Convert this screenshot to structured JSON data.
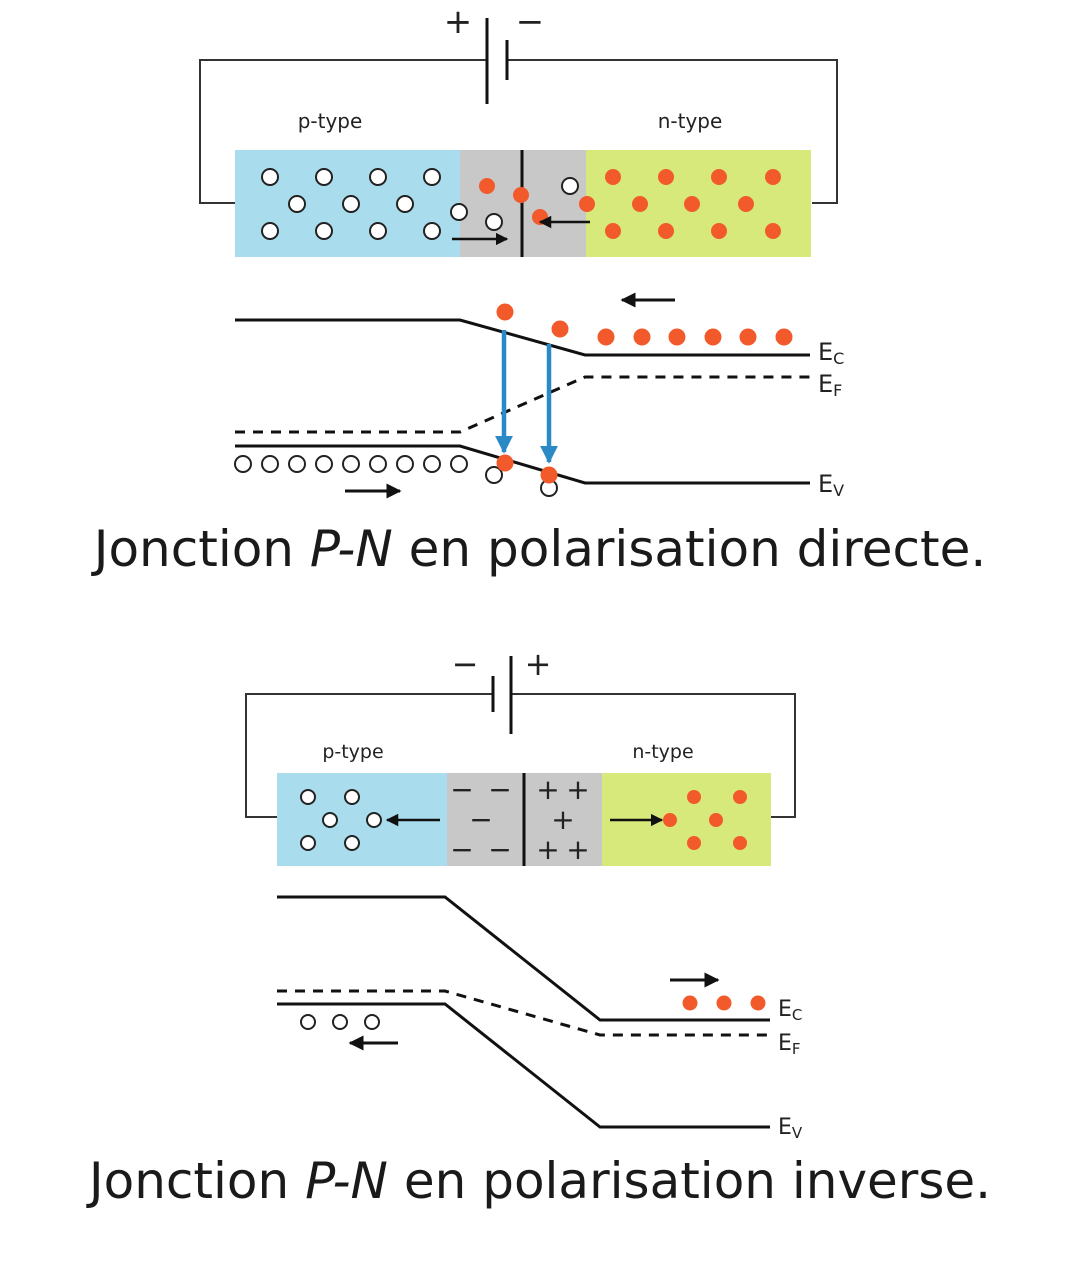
{
  "colors": {
    "p_region": "#a9dcec",
    "depletion": "#c8c8c8",
    "n_region": "#d6e97a",
    "electron": "#f25a2b",
    "transition_arrow": "#2b8ac6",
    "line": "#111111"
  },
  "top": {
    "battery": {
      "left_sign": "+",
      "right_sign": "−"
    },
    "p_label": "p-type",
    "n_label": "n-type",
    "band_labels": {
      "ec": "E",
      "ec_sub": "C",
      "ef": "E",
      "ef_sub": "F",
      "ev": "E",
      "ev_sub": "V"
    },
    "caption": {
      "pre": "Jonction ",
      "em": "P-N",
      "post": " en polarisation directe."
    }
  },
  "bottom": {
    "battery": {
      "left_sign": "−",
      "right_sign": "+"
    },
    "p_label": "p-type",
    "n_label": "n-type",
    "depletion_neg": "−",
    "depletion_pos": "+",
    "band_labels": {
      "ec": "E",
      "ec_sub": "C",
      "ef": "E",
      "ef_sub": "F",
      "ev": "E",
      "ev_sub": "V"
    },
    "caption": {
      "pre": "Jonction ",
      "em": "P-N",
      "post": " en polarisation inverse."
    }
  }
}
